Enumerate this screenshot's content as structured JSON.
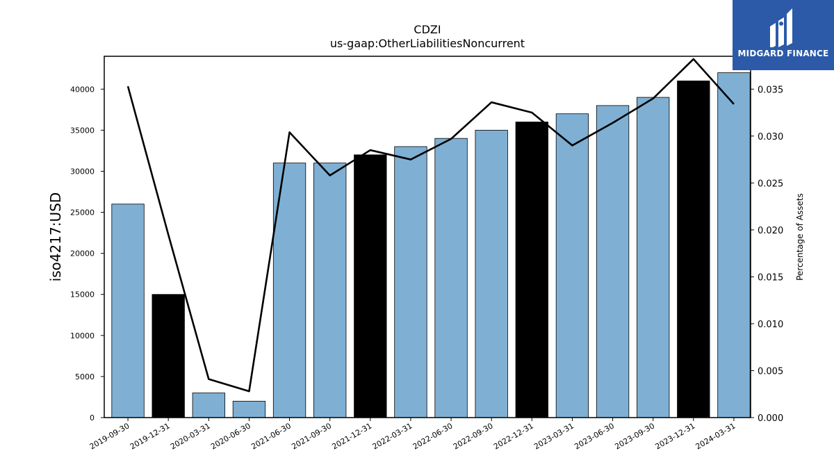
{
  "chart_data": {
    "type": "bar",
    "title": "CDZI",
    "subtitle": "us-gaap:OtherLiabilitiesNoncurrent",
    "ylabel": "iso4217:USD",
    "y2label": "Percentage of Assets",
    "ylim": [
      0,
      44000
    ],
    "y2lim": [
      0,
      0.0385
    ],
    "yticks": [
      0,
      5000,
      10000,
      15000,
      20000,
      25000,
      30000,
      35000,
      40000
    ],
    "y2ticks": [
      "0.000",
      "0.005",
      "0.010",
      "0.015",
      "0.020",
      "0.025",
      "0.030",
      "0.035"
    ],
    "grid": false,
    "categories": [
      "2019-09-30",
      "2019-12-31",
      "2020-03-31",
      "2020-06-30",
      "2021-06-30",
      "2021-09-30",
      "2021-12-31",
      "2022-03-31",
      "2022-06-30",
      "2022-09-30",
      "2022-12-31",
      "2023-03-31",
      "2023-06-30",
      "2023-09-30",
      "2023-12-31",
      "2024-03-31"
    ],
    "series": [
      {
        "type": "bar",
        "values": [
          26000,
          15000,
          3000,
          2000,
          31000,
          31000,
          32000,
          33000,
          34000,
          35000,
          36000,
          37000,
          38000,
          39000,
          41000,
          42000
        ],
        "highlight": [
          false,
          true,
          false,
          false,
          false,
          false,
          true,
          false,
          false,
          false,
          true,
          false,
          false,
          false,
          true,
          false
        ],
        "color": "#7fb0d4",
        "highlight_color": "#000000"
      },
      {
        "type": "line",
        "axis": "right",
        "values": [
          0.0353,
          0.0195,
          0.0041,
          0.0028,
          0.0304,
          0.0258,
          0.0285,
          0.0275,
          0.0297,
          0.0336,
          0.0325,
          0.029,
          0.0314,
          0.034,
          0.0382,
          0.0334
        ],
        "color": "#000000"
      }
    ]
  },
  "logo": {
    "text": "MIDGARD FINANCE",
    "color": "#2c5aa8"
  }
}
